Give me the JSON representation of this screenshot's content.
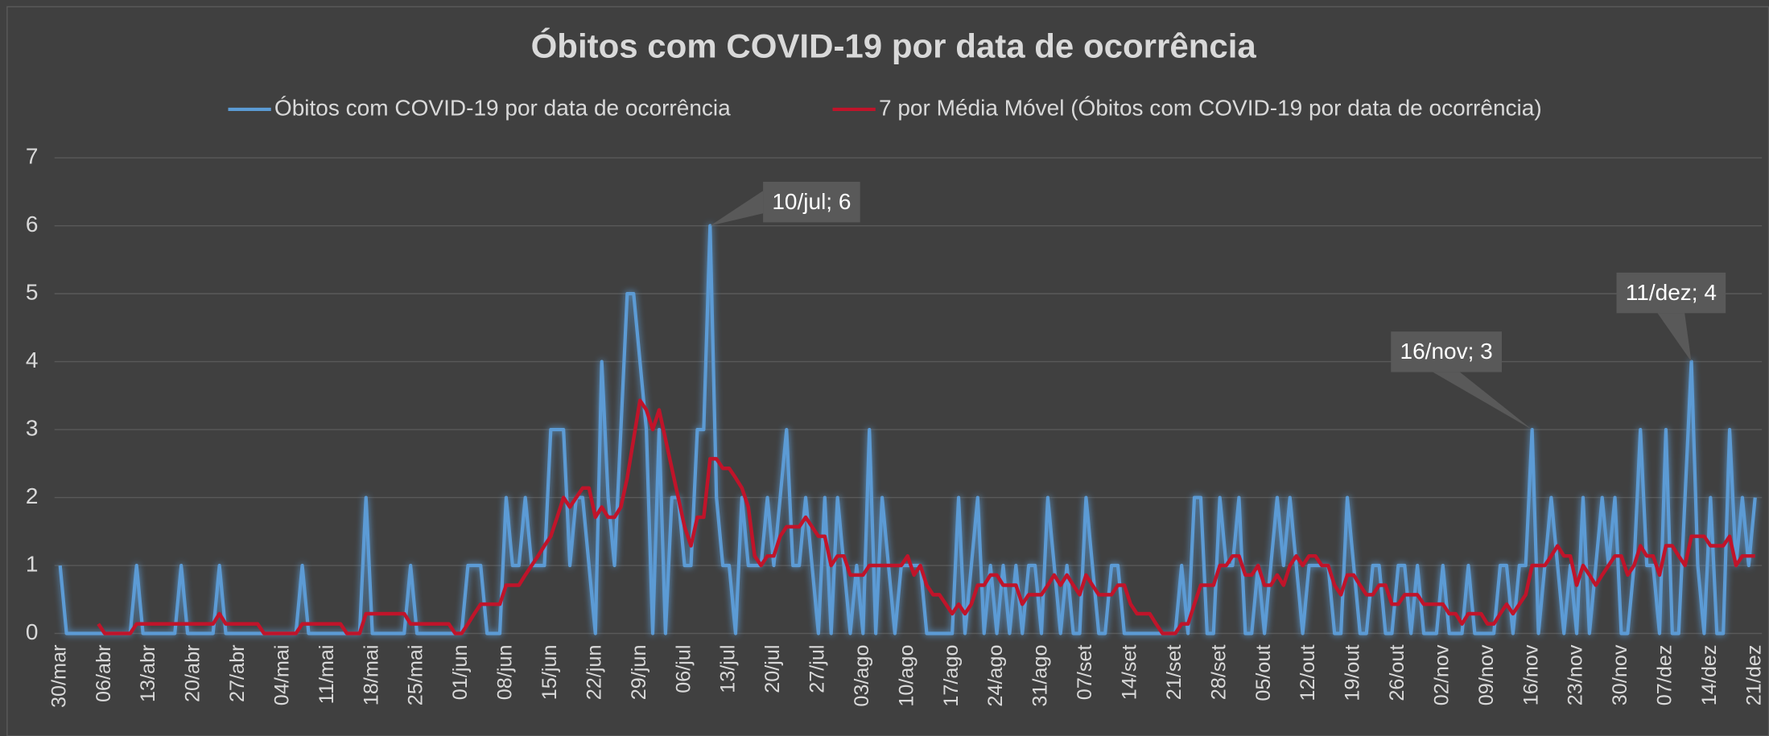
{
  "chart_data": {
    "type": "line",
    "title": "Óbitos com COVID-19 por data de ocorrência",
    "legend": "top",
    "grid": true,
    "ylim": [
      0,
      7
    ],
    "yticks": [
      0,
      1,
      2,
      3,
      4,
      5,
      6,
      7
    ],
    "categories": [
      "30/mar",
      null,
      null,
      null,
      null,
      null,
      null,
      "06/abr",
      null,
      null,
      null,
      null,
      null,
      null,
      "13/abr",
      null,
      null,
      null,
      null,
      null,
      null,
      "20/abr",
      null,
      null,
      null,
      null,
      null,
      null,
      "27/abr",
      null,
      null,
      null,
      null,
      null,
      null,
      "04/mai",
      null,
      null,
      null,
      null,
      null,
      null,
      "11/mai",
      null,
      null,
      null,
      null,
      null,
      null,
      "18/mai",
      null,
      null,
      null,
      null,
      null,
      null,
      "25/mai",
      null,
      null,
      null,
      null,
      null,
      null,
      "01/jun",
      null,
      null,
      null,
      null,
      null,
      null,
      "08/jun",
      null,
      null,
      null,
      null,
      null,
      null,
      "15/jun",
      null,
      null,
      null,
      null,
      null,
      null,
      "22/jun",
      null,
      null,
      null,
      null,
      null,
      null,
      "29/jun",
      null,
      null,
      null,
      null,
      null,
      null,
      "06/jul",
      null,
      null,
      null,
      null,
      null,
      null,
      "13/jul",
      null,
      null,
      null,
      null,
      null,
      null,
      "20/jul",
      null,
      null,
      null,
      null,
      null,
      null,
      "27/jul",
      null,
      null,
      null,
      null,
      null,
      null,
      "03/ago",
      null,
      null,
      null,
      null,
      null,
      null,
      "10/ago",
      null,
      null,
      null,
      null,
      null,
      null,
      "17/ago",
      null,
      null,
      null,
      null,
      null,
      null,
      "24/ago",
      null,
      null,
      null,
      null,
      null,
      null,
      "31/ago",
      null,
      null,
      null,
      null,
      null,
      null,
      "07/set",
      null,
      null,
      null,
      null,
      null,
      null,
      "14/set",
      null,
      null,
      null,
      null,
      null,
      null,
      "21/set",
      null,
      null,
      null,
      null,
      null,
      null,
      "28/set",
      null,
      null,
      null,
      null,
      null,
      null,
      "05/out",
      null,
      null,
      null,
      null,
      null,
      null,
      "12/out",
      null,
      null,
      null,
      null,
      null,
      null,
      "19/out",
      null,
      null,
      null,
      null,
      null,
      null,
      "26/out",
      null,
      null,
      null,
      null,
      null,
      null,
      "02/nov",
      null,
      null,
      null,
      null,
      null,
      null,
      "09/nov",
      null,
      null,
      null,
      null,
      null,
      null,
      "16/nov",
      null,
      null,
      null,
      null,
      null,
      null,
      "23/nov",
      null,
      null,
      null,
      null,
      null,
      null,
      "30/nov",
      null,
      null,
      null,
      null,
      null,
      null,
      "07/dez",
      null,
      null,
      null,
      null,
      null,
      null,
      "14/dez",
      null,
      null,
      null,
      null,
      null,
      null,
      "21/dez"
    ],
    "series": [
      {
        "name": "Óbitos com COVID-19 por data de ocorrência",
        "color": "#5b9bd5",
        "values": [
          1,
          0,
          0,
          0,
          0,
          0,
          0,
          0,
          0,
          0,
          0,
          0,
          1,
          0,
          0,
          0,
          0,
          0,
          0,
          1,
          0,
          0,
          0,
          0,
          0,
          1,
          0,
          0,
          0,
          0,
          0,
          0,
          0,
          0,
          0,
          0,
          0,
          0,
          1,
          0,
          0,
          0,
          0,
          0,
          0,
          0,
          0,
          0,
          2,
          0,
          0,
          0,
          0,
          0,
          0,
          1,
          0,
          0,
          0,
          0,
          0,
          0,
          0,
          0,
          1,
          1,
          1,
          0,
          0,
          0,
          2,
          1,
          1,
          2,
          1,
          1,
          1,
          3,
          3,
          3,
          1,
          2,
          2,
          1,
          0,
          4,
          2,
          1,
          3,
          5,
          5,
          4,
          3,
          0,
          3,
          0,
          2,
          2,
          1,
          1,
          3,
          3,
          6,
          2,
          1,
          1,
          0,
          2,
          1,
          1,
          1,
          2,
          1,
          2,
          3,
          1,
          1,
          2,
          1,
          0,
          2,
          0,
          2,
          1,
          0,
          1,
          0,
          3,
          0,
          2,
          1,
          0,
          1,
          1,
          1,
          1,
          0,
          0,
          0,
          0,
          0,
          2,
          0,
          1,
          2,
          0,
          1,
          0,
          1,
          0,
          1,
          0,
          1,
          1,
          0,
          2,
          1,
          0,
          1,
          0,
          0,
          2,
          1,
          0,
          0,
          1,
          1,
          0,
          0,
          0,
          0,
          0,
          0,
          0,
          0,
          0,
          1,
          0,
          2,
          2,
          0,
          0,
          2,
          1,
          1,
          2,
          0,
          0,
          1,
          0,
          1,
          2,
          1,
          2,
          1,
          0,
          1,
          1,
          1,
          1,
          0,
          0,
          2,
          1,
          0,
          0,
          1,
          1,
          0,
          0,
          1,
          1,
          0,
          1,
          0,
          0,
          0,
          1,
          0,
          0,
          0,
          1,
          0,
          0,
          0,
          0,
          1,
          1,
          0,
          1,
          1,
          3,
          0,
          1,
          2,
          1,
          0,
          1,
          0,
          2,
          0,
          1,
          2,
          1,
          2,
          0,
          0,
          1,
          3,
          1,
          1,
          0,
          3,
          0,
          0,
          2,
          4,
          1,
          0,
          2,
          0,
          0,
          3,
          1,
          2,
          1,
          2
        ],
        "value_labels": [
          null,
          null,
          null,
          null,
          null,
          null,
          null,
          null,
          null,
          null,
          null,
          null,
          null,
          null,
          null,
          null,
          null,
          null,
          null,
          null,
          null,
          null,
          null,
          null,
          null,
          null,
          null,
          null,
          null,
          null,
          null,
          null,
          null,
          null,
          null,
          null,
          null,
          null,
          null,
          null,
          null,
          null,
          null,
          null,
          null,
          null,
          null,
          null,
          null,
          null,
          null,
          null,
          null,
          null,
          null,
          null,
          null,
          null,
          null,
          null,
          null,
          null,
          null,
          null,
          null,
          null,
          null,
          null,
          null,
          null,
          null,
          null,
          null,
          null,
          null,
          null,
          null,
          null,
          null,
          null,
          null,
          null,
          null,
          null,
          null,
          null,
          null,
          null,
          null,
          null,
          null,
          null,
          null,
          null,
          null,
          null,
          null,
          null,
          null,
          null,
          null,
          null,
          "10/jul; 6",
          null,
          null,
          null,
          null,
          null,
          null,
          null,
          null,
          null,
          null,
          null,
          null,
          null,
          null,
          null,
          null,
          null,
          null,
          null,
          null,
          null,
          null,
          null,
          null,
          null,
          null,
          null,
          null,
          null,
          null,
          null,
          null,
          null,
          null,
          null,
          null,
          null,
          null,
          null,
          null,
          null,
          null,
          null,
          null,
          null,
          null,
          null,
          null,
          null,
          null,
          null,
          null,
          null,
          null,
          null,
          null,
          null,
          null,
          null,
          null,
          null,
          null,
          null,
          null,
          null,
          null,
          null,
          null,
          null,
          null,
          null,
          null,
          null,
          null,
          null,
          null,
          null,
          null,
          null,
          null,
          null,
          null,
          null,
          null,
          null,
          null,
          null,
          null,
          null,
          null,
          null,
          null,
          null,
          null,
          null,
          null,
          null,
          null,
          null,
          null,
          null,
          null,
          null,
          null,
          null,
          null,
          null,
          null,
          null,
          null,
          null,
          null,
          null,
          null,
          null,
          null,
          null,
          null,
          null,
          null,
          null,
          null,
          null,
          null,
          null,
          null,
          null,
          null,
          "16/nov; 3",
          null,
          null,
          null,
          null,
          null,
          null,
          null,
          null,
          null,
          null,
          null,
          null,
          null,
          null,
          null,
          null,
          null,
          null,
          null,
          null,
          null,
          null,
          null,
          null,
          "11/dez; 4",
          null,
          null,
          null,
          null,
          null,
          null,
          null,
          null,
          null,
          null
        ]
      },
      {
        "name": "7 por Média Móvel (Óbitos com COVID-19 por data de ocorrência)",
        "color": "#c0142a",
        "values": [
          null,
          null,
          null,
          null,
          null,
          null,
          0.14,
          0,
          0,
          0,
          0,
          0,
          0.14,
          0.14,
          0.14,
          0.14,
          0.14,
          0.14,
          0.14,
          0.14,
          0.14,
          0.14,
          0.14,
          0.14,
          0.14,
          0.29,
          0.14,
          0.14,
          0.14,
          0.14,
          0.14,
          0.14,
          0,
          0,
          0,
          0,
          0,
          0,
          0.14,
          0.14,
          0.14,
          0.14,
          0.14,
          0.14,
          0.14,
          0,
          0,
          0,
          0.29,
          0.29,
          0.29,
          0.29,
          0.29,
          0.29,
          0.29,
          0.14,
          0.14,
          0.14,
          0.14,
          0.14,
          0.14,
          0.14,
          0,
          0,
          0.14,
          0.29,
          0.43,
          0.43,
          0.43,
          0.43,
          0.71,
          0.71,
          0.71,
          0.86,
          1,
          1.14,
          1.29,
          1.43,
          1.71,
          2,
          1.86,
          2,
          2.14,
          2.14,
          1.71,
          1.86,
          1.71,
          1.71,
          1.86,
          2.29,
          2.86,
          3.43,
          3.29,
          3,
          3.29,
          2.86,
          2.43,
          2,
          1.57,
          1.29,
          1.71,
          1.71,
          2.57,
          2.57,
          2.43,
          2.43,
          2.29,
          2.14,
          1.86,
          1.14,
          1,
          1.14,
          1.14,
          1.43,
          1.57,
          1.57,
          1.57,
          1.71,
          1.57,
          1.43,
          1.43,
          1,
          1.14,
          1.14,
          0.86,
          0.86,
          0.86,
          1,
          1,
          1,
          1,
          1,
          1,
          1.14,
          0.86,
          1,
          0.71,
          0.57,
          0.57,
          0.43,
          0.29,
          0.43,
          0.29,
          0.43,
          0.71,
          0.71,
          0.86,
          0.86,
          0.71,
          0.71,
          0.71,
          0.43,
          0.57,
          0.57,
          0.57,
          0.71,
          0.86,
          0.71,
          0.86,
          0.71,
          0.57,
          0.86,
          0.71,
          0.57,
          0.57,
          0.57,
          0.71,
          0.71,
          0.43,
          0.29,
          0.29,
          0.29,
          0.14,
          0,
          0,
          0,
          0.14,
          0.14,
          0.43,
          0.71,
          0.71,
          0.71,
          1,
          1,
          1.14,
          1.14,
          0.86,
          0.86,
          1,
          0.71,
          0.71,
          0.86,
          0.71,
          1,
          1.14,
          1,
          1.14,
          1.14,
          1,
          1,
          0.71,
          0.57,
          0.86,
          0.86,
          0.71,
          0.57,
          0.57,
          0.71,
          0.71,
          0.43,
          0.43,
          0.57,
          0.57,
          0.57,
          0.43,
          0.43,
          0.43,
          0.43,
          0.29,
          0.29,
          0.14,
          0.29,
          0.29,
          0.29,
          0.14,
          0.14,
          0.29,
          0.43,
          0.29,
          0.43,
          0.57,
          1,
          1,
          1,
          1.14,
          1.29,
          1.14,
          1.14,
          0.71,
          1,
          0.86,
          0.71,
          0.86,
          1,
          1.14,
          1.14,
          0.86,
          1,
          1.29,
          1.14,
          1.14,
          0.86,
          1.29,
          1.29,
          1.14,
          1,
          1.43,
          1.43,
          1.43,
          1.29,
          1.29,
          1.29,
          1.43,
          1,
          1.14,
          1.14,
          1.14
        ]
      }
    ]
  }
}
